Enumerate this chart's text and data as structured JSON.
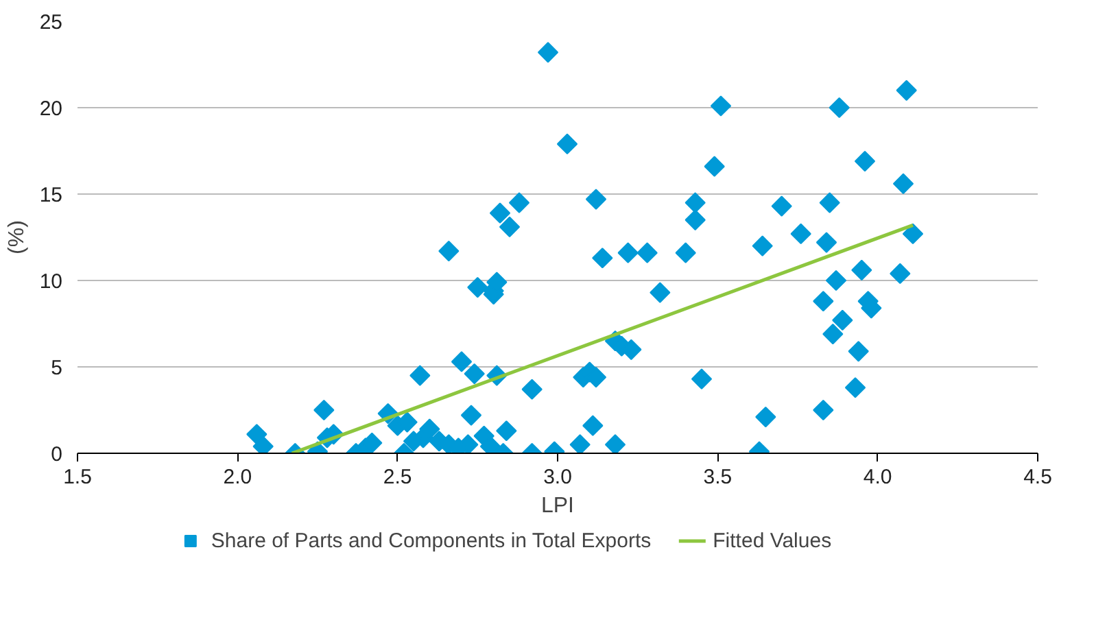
{
  "chart_data": {
    "type": "scatter",
    "xlabel": "LPI",
    "ylabel": "(%)",
    "xlim": [
      1.5,
      4.5
    ],
    "ylim": [
      0,
      25
    ],
    "xticks": [
      1.5,
      {
        "value": 2,
        "label": "2.0"
      },
      2.5,
      {
        "value": 3,
        "label": "3.0"
      },
      3.5,
      {
        "value": 4,
        "label": "4.0"
      },
      4.5
    ],
    "yticks": [
      0,
      5,
      10,
      15,
      20,
      25
    ],
    "grid": "y",
    "legend": "bottom",
    "marker": "diamond",
    "series": [
      {
        "name": "Share of Parts and Components in Total Exports",
        "color": "#009ad7",
        "x": [
          2.06,
          2.08,
          2.18,
          2.25,
          2.27,
          2.3,
          2.28,
          2.37,
          2.4,
          2.42,
          2.47,
          2.5,
          2.53,
          2.58,
          2.6,
          2.57,
          2.63,
          2.66,
          2.66,
          2.7,
          2.72,
          2.73,
          2.74,
          2.75,
          2.77,
          2.79,
          2.8,
          2.8,
          2.81,
          2.81,
          2.82,
          2.83,
          2.84,
          2.85,
          2.88,
          2.92,
          2.92,
          2.97,
          2.99,
          3.03,
          3.07,
          3.08,
          3.1,
          3.11,
          3.12,
          3.12,
          3.14,
          3.18,
          3.18,
          3.2,
          3.22,
          3.23,
          3.28,
          3.32,
          3.4,
          3.43,
          3.43,
          3.45,
          3.49,
          3.51,
          3.63,
          3.64,
          3.65,
          3.7,
          3.76,
          3.83,
          3.83,
          3.84,
          3.85,
          3.86,
          3.87,
          3.88,
          3.89,
          3.93,
          3.94,
          3.95,
          3.96,
          3.97,
          3.98,
          4.07,
          4.08,
          4.09,
          4.11,
          2.52,
          2.55,
          2.69
        ],
        "values": [
          1.1,
          0.4,
          0.0,
          0.1,
          2.5,
          1.1,
          0.9,
          0.0,
          0.3,
          0.6,
          2.3,
          1.6,
          1.8,
          0.9,
          1.4,
          4.5,
          0.7,
          0.5,
          11.7,
          5.3,
          0.5,
          2.2,
          4.6,
          9.6,
          1.0,
          0.4,
          9.2,
          9.4,
          9.9,
          4.5,
          13.9,
          0.0,
          1.3,
          13.1,
          14.5,
          3.7,
          0.0,
          23.2,
          0.1,
          17.9,
          0.5,
          4.4,
          4.7,
          1.6,
          4.4,
          14.7,
          11.3,
          0.5,
          6.5,
          6.2,
          11.6,
          6.0,
          11.6,
          9.3,
          11.6,
          14.5,
          13.5,
          4.3,
          16.6,
          20.1,
          0.1,
          12.0,
          2.1,
          14.3,
          12.7,
          2.5,
          8.8,
          12.2,
          14.5,
          6.9,
          10.0,
          20.0,
          7.7,
          3.8,
          5.9,
          10.6,
          16.9,
          8.8,
          8.4,
          10.4,
          15.6,
          21.0,
          12.7,
          0.0,
          0.7,
          0.3
        ]
      },
      {
        "name": "Fitted Values",
        "type": "line",
        "marker": "none",
        "color": "#8dc63f",
        "x": [
          2.17,
          4.11
        ],
        "values": [
          0,
          13.2
        ]
      }
    ]
  }
}
